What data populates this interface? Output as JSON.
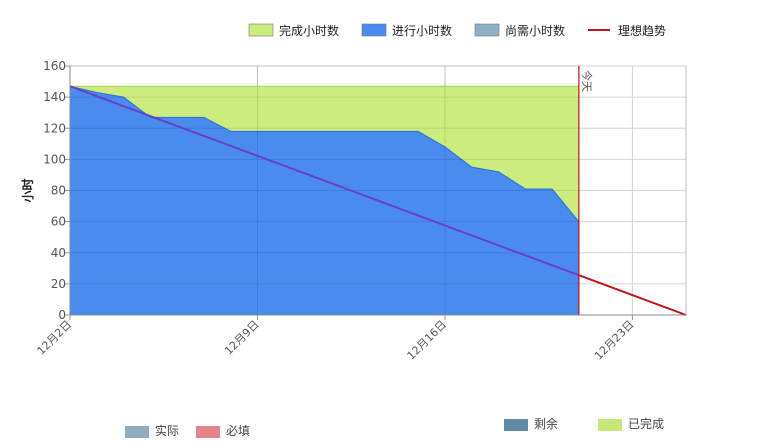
{
  "chart_data": {
    "type": "area",
    "ylabel": "小时",
    "xlabel": "",
    "ylim": [
      0,
      160
    ],
    "yticks": [
      0,
      20,
      40,
      60,
      80,
      100,
      120,
      140,
      160
    ],
    "xlim": [
      "12月2日",
      "12月25日"
    ],
    "xtick_labels": [
      "12月2日",
      "12月9日",
      "12月16日",
      "12月23日"
    ],
    "xtick_days": [
      2,
      9,
      16,
      23
    ],
    "grid": true,
    "legend_placement": "top-right",
    "legend": [
      {
        "label": "完成小时数",
        "type": "area",
        "color": "#cdec7e"
      },
      {
        "label": "进行小时数",
        "type": "area",
        "color": "#4a8bf0"
      },
      {
        "label": "尚需小时数",
        "type": "area",
        "color": "#8fb0c4"
      },
      {
        "label": "理想趋势",
        "type": "line",
        "color": "#c0141e"
      }
    ],
    "completed_series": {
      "name": "完成小时数",
      "x": [
        2,
        2.5,
        3,
        4,
        5,
        6,
        7,
        8,
        9,
        10,
        11,
        12,
        13,
        14,
        15,
        16,
        17,
        18,
        19,
        20,
        21
      ],
      "values": [
        147,
        147,
        147,
        147,
        147,
        147,
        147,
        147,
        147,
        147,
        147,
        147,
        147,
        147,
        147,
        147,
        147,
        147,
        147,
        147,
        147
      ]
    },
    "in_progress_series": {
      "name": "进行小时数",
      "x": [
        2,
        3,
        4,
        5,
        6,
        7,
        8,
        9,
        10,
        11,
        12,
        13,
        14,
        15,
        16,
        17,
        18,
        19,
        20,
        21
      ],
      "values": [
        147,
        143,
        140,
        127,
        127,
        127,
        118,
        118,
        118,
        118,
        118,
        118,
        118,
        118,
        108,
        95,
        92,
        81,
        81,
        60
      ]
    },
    "ideal_series": {
      "name": "理想趋势",
      "x": [
        2,
        25
      ],
      "values": [
        147,
        0
      ]
    },
    "today_marker": {
      "x": 21,
      "label": "今天"
    },
    "bottom_legend": [
      {
        "label": "实际",
        "color": "#8eaebd"
      },
      {
        "label": "必填",
        "color": "#e5848b"
      },
      {
        "label": "剩余",
        "color": "#5f8aa3"
      },
      {
        "label": "已完成",
        "color": "#c6e87a"
      }
    ]
  }
}
